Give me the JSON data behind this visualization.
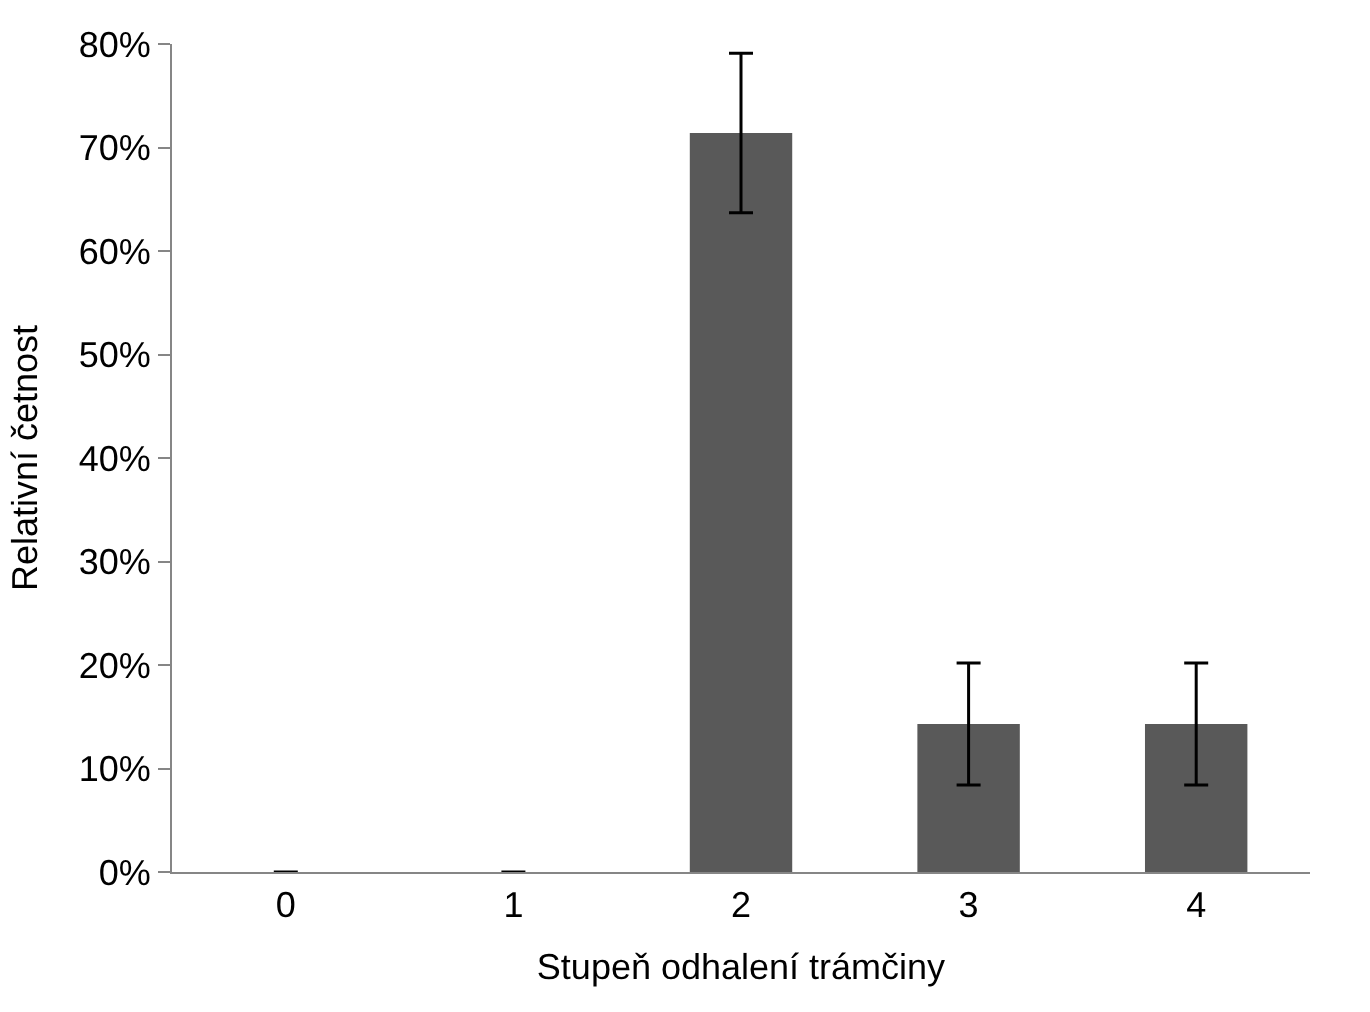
{
  "chart_data": {
    "type": "bar",
    "xlabel": "Stupeň odhalení trámčiny",
    "ylabel": "Relativní četnost",
    "categories": [
      "0",
      "1",
      "2",
      "3",
      "4"
    ],
    "values": [
      0,
      0,
      71.4,
      14.3,
      14.3
    ],
    "errors": [
      null,
      null,
      7.7,
      5.9,
      5.9
    ],
    "color": "#595959",
    "ylim": [
      0,
      80
    ],
    "yticks": [
      {
        "value": 0,
        "label": "0%"
      },
      {
        "value": 10,
        "label": "10%"
      },
      {
        "value": 20,
        "label": "20%"
      },
      {
        "value": 30,
        "label": "30%"
      },
      {
        "value": 40,
        "label": "40%"
      },
      {
        "value": 50,
        "label": "50%"
      },
      {
        "value": 60,
        "label": "60%"
      },
      {
        "value": 70,
        "label": "70%"
      },
      {
        "value": 80,
        "label": "80%"
      }
    ],
    "legend": false
  }
}
